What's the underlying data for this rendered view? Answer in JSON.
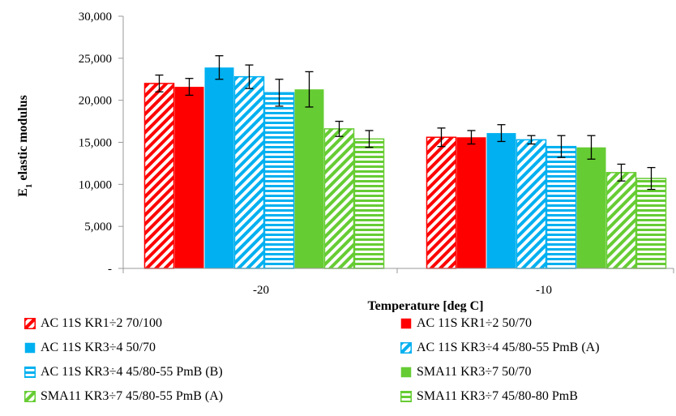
{
  "chart_data": {
    "type": "bar",
    "categories": [
      "-20",
      "-10"
    ],
    "xlabel": "Temperature [deg C]",
    "ylabel": "E1 elastic modulus",
    "ylabel_main": "E",
    "ylabel_sub": "1",
    "ylabel_rest": " elastic modulus",
    "ylim": [
      0,
      30000
    ],
    "yticks": [
      0,
      5000,
      10000,
      15000,
      20000,
      25000,
      30000
    ],
    "ytick_labels": [
      "-",
      "5,000",
      "10,000",
      "15,000",
      "20,000",
      "25,000",
      "30,000"
    ],
    "grid": false,
    "legend_position": "bottom",
    "series": [
      {
        "name": "AC 11S KR1÷2 70/100",
        "values": [
          22000,
          15600
        ],
        "errors": [
          1000,
          1100
        ],
        "color": "#ff0000",
        "pattern": "diagonal"
      },
      {
        "name": "AC 11S KR1÷2 50/70",
        "values": [
          21600,
          15600
        ],
        "errors": [
          1000,
          800
        ],
        "color": "#ff0000",
        "pattern": "solid"
      },
      {
        "name": "AC 11S KR3÷4 50/70",
        "values": [
          23900,
          16100
        ],
        "errors": [
          1400,
          1000
        ],
        "color": "#00b0f0",
        "pattern": "solid"
      },
      {
        "name": "AC 11S KR3÷4 45/80-55 PmB (A)",
        "values": [
          22800,
          15300
        ],
        "errors": [
          1400,
          500
        ],
        "color": "#00b0f0",
        "pattern": "diagonal"
      },
      {
        "name": "AC 11S KR3÷4 45/80-55 PmB (B)",
        "values": [
          20900,
          14500
        ],
        "errors": [
          1600,
          1300
        ],
        "color": "#00b0f0",
        "pattern": "horizontal"
      },
      {
        "name": "SMA11 KR3÷7 50/70",
        "values": [
          21300,
          14400
        ],
        "errors": [
          2100,
          1400
        ],
        "color": "#66cc33",
        "pattern": "solid"
      },
      {
        "name": "SMA11 KR3÷7 45/80-55 PmB (A)",
        "values": [
          16600,
          11400
        ],
        "errors": [
          900,
          1000
        ],
        "color": "#66cc33",
        "pattern": "diagonal"
      },
      {
        "name": "SMA11 KR3÷7 45/80-80 PmB",
        "values": [
          15400,
          10700
        ],
        "errors": [
          1000,
          1300
        ],
        "color": "#66cc33",
        "pattern": "horizontal"
      }
    ]
  }
}
